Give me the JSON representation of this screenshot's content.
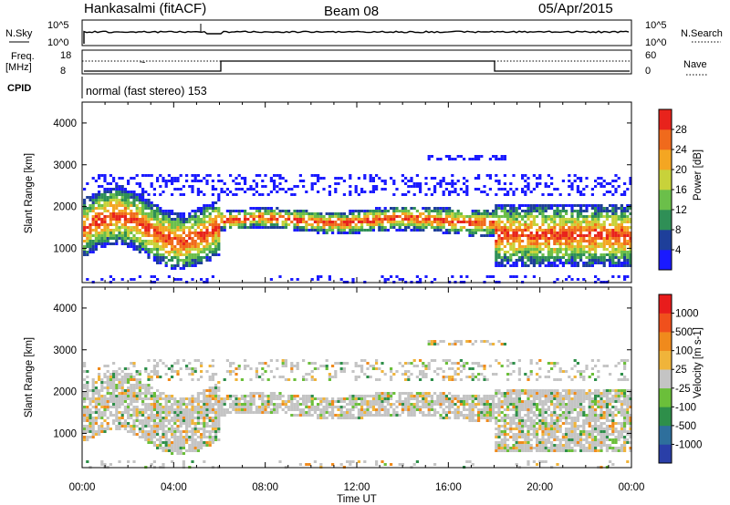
{
  "header": {
    "station": "Hankasalmi (fitACF)",
    "beam": "Beam 08",
    "date": "05/Apr/2015"
  },
  "noise_panel": {
    "left_label": "N.Sky",
    "right_label": "N.Search",
    "left_ticks": [
      "10^5",
      "10^0"
    ],
    "right_ticks": [
      "10^5",
      "10^0"
    ]
  },
  "freq_panel": {
    "left_label_line1": "Freq.",
    "left_label_line2": "[MHz]",
    "right_label": "Nave",
    "left_ticks": [
      "18",
      "8"
    ],
    "right_ticks": [
      "60",
      "0"
    ]
  },
  "cpid_panel": {
    "label": "CPID",
    "text": "normal (fast stereo) 153"
  },
  "x_axis": {
    "label": "Time UT",
    "ticks": [
      "00:00",
      "04:00",
      "08:00",
      "12:00",
      "16:00",
      "20:00",
      "00:00"
    ]
  },
  "chart_data": [
    {
      "type": "heatmap",
      "quantity": "Power",
      "ylabel": "Slant Range [km]",
      "ylim": [
        180,
        4500
      ],
      "yticks": [
        1000,
        2000,
        3000,
        4000
      ],
      "xlim_hours": [
        0,
        24
      ],
      "colorbar": {
        "label": "Power [dB]",
        "ticks": [
          "4",
          "8",
          "12",
          "16",
          "20",
          "24",
          "28"
        ],
        "colors": [
          "#1a1aff",
          "#1e3f9a",
          "#2f8f56",
          "#6bbf4a",
          "#c8d23a",
          "#f4a622",
          "#f06a1c",
          "#e8231c"
        ]
      }
    },
    {
      "type": "heatmap",
      "quantity": "Velocity",
      "ylabel": "Slant Range [km]",
      "ylim": [
        180,
        4500
      ],
      "yticks": [
        1000,
        2000,
        3000,
        4000
      ],
      "xlim_hours": [
        0,
        24
      ],
      "colorbar": {
        "label": "Velocity [m s-1]",
        "ticks": [
          "1000",
          "500",
          "100",
          "25",
          "-25",
          "-100",
          "-500",
          "-1000"
        ],
        "colors": [
          "#2a3fa8",
          "#2e6f9c",
          "#2e8f4a",
          "#6bbf3a",
          "#c4c4c4",
          "#f0b43a",
          "#f08a1c",
          "#f0501c",
          "#e81c1c"
        ]
      }
    }
  ]
}
